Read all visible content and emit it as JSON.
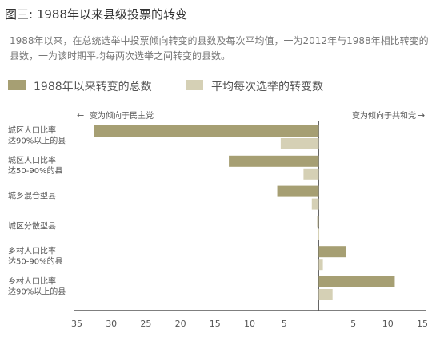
{
  "header": {
    "title": "图三: 1988年以来县级投票的转变",
    "subtitle": "1988年以来，在总统选举中投票倾向转变的县数及每次平均值，一为2012年与1988年相比转变的县数，一为该时期平均每两次选举之间转变的县数。"
  },
  "chart_data": {
    "type": "bar",
    "orientation": "horizontal",
    "categories": [
      [
        "城区人口比率",
        "达90%以上的县"
      ],
      [
        "城区人口比率",
        "达50-90%的县"
      ],
      [
        "城乡混合型县"
      ],
      [
        "城区分散型县"
      ],
      [
        "乡村人口比率",
        "达50-90%的县"
      ],
      [
        "乡村人口比率",
        "达90%以上的县"
      ]
    ],
    "series": [
      {
        "name": "1988年以来转变的总数",
        "color": "#a69f73",
        "values": [
          -32.5,
          -13,
          -6,
          -0.2,
          4,
          11
        ]
      },
      {
        "name": "平均每次选举的转变数",
        "color": "#d5d0b5",
        "values": [
          -5.5,
          -2.2,
          -1,
          -0.1,
          0.6,
          2
        ]
      }
    ],
    "direction_labels": {
      "left": "变为倾向于民主党",
      "right": "变为倾向于共和党"
    },
    "arrows": {
      "left": "←",
      "right": "→"
    },
    "xlim": [
      -35,
      15
    ],
    "xticks": [
      -35,
      -30,
      -25,
      -20,
      -15,
      -10,
      -5,
      5,
      10,
      15
    ],
    "xtick_labels": [
      "35",
      "30",
      "25",
      "20",
      "15",
      "10",
      "5",
      "5",
      "10",
      "15"
    ],
    "axis_color": "#555555",
    "text_color": "#555555",
    "grid": false,
    "legend_position": "top-left"
  }
}
